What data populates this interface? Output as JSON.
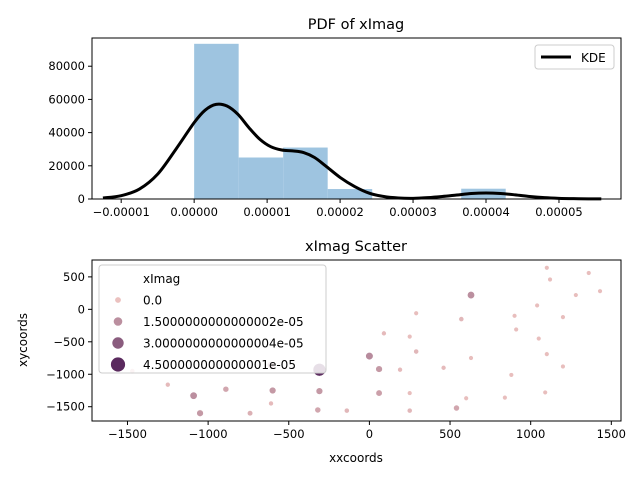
{
  "chart_data": [
    {
      "type": "bar",
      "title": "PDF of xImag",
      "xlabel": "",
      "ylabel": "",
      "xlim": [
        -1.4e-05,
        5.85e-05
      ],
      "ylim": [
        0,
        97000
      ],
      "xticks": [
        -1e-05,
        0,
        1e-05,
        2e-05,
        3e-05,
        4e-05,
        5e-05
      ],
      "xtick_labels": [
        "−0.00001",
        "0.00000",
        "0.00001",
        "0.00002",
        "0.00003",
        "0.00004",
        "0.00005"
      ],
      "yticks": [
        0,
        20000,
        40000,
        60000,
        80000
      ],
      "ytick_labels": [
        "0",
        "20000",
        "40000",
        "60000",
        "80000"
      ],
      "histogram": {
        "color": "#9ec4e0",
        "bins": [
          {
            "x0": 0,
            "x1": 6.1e-06,
            "value": 93500
          },
          {
            "x0": 6.1e-06,
            "x1": 1.22e-05,
            "value": 25000
          },
          {
            "x0": 1.22e-05,
            "x1": 1.83e-05,
            "value": 31000
          },
          {
            "x0": 1.83e-05,
            "x1": 2.44e-05,
            "value": 6000
          },
          {
            "x0": 2.44e-05,
            "x1": 3.05e-05,
            "value": 0
          },
          {
            "x0": 3.05e-05,
            "x1": 3.66e-05,
            "value": 0
          },
          {
            "x0": 3.66e-05,
            "x1": 4.27e-05,
            "value": 6200
          }
        ]
      },
      "series": [
        {
          "name": "KDE",
          "color": "#000000",
          "x": [
            -1.25e-05,
            -1e-05,
            -7.5e-06,
            -5e-06,
            -2.5e-06,
            0,
            1.5e-06,
            3e-06,
            4.5e-06,
            6e-06,
            7.5e-06,
            9e-06,
            1.05e-05,
            1.2e-05,
            1.35e-05,
            1.5e-05,
            1.65e-05,
            1.8e-05,
            2e-05,
            2.2e-05,
            2.4e-05,
            2.6e-05,
            2.8e-05,
            3e-05,
            3.2e-05,
            3.4e-05,
            3.6e-05,
            3.8e-05,
            4e-05,
            4.2e-05,
            4.4e-05,
            4.6e-05,
            4.8e-05,
            5e-05,
            5.2e-05,
            5.4e-05,
            5.58e-05
          ],
          "y": [
            600,
            2000,
            6000,
            15000,
            30000,
            46000,
            53500,
            57000,
            56000,
            51000,
            43000,
            36000,
            31500,
            29500,
            29000,
            28000,
            25000,
            20000,
            13000,
            7500,
            3500,
            1500,
            600,
            400,
            800,
            1500,
            2400,
            3300,
            3600,
            3300,
            2500,
            1500,
            800,
            400,
            200,
            100,
            50
          ]
        }
      ],
      "legend": {
        "entries": [
          "KDE"
        ],
        "placement": "top-right"
      },
      "grid": false
    },
    {
      "type": "scatter",
      "title": "xImag Scatter",
      "xlabel": "xxcoords",
      "ylabel": "xycoords",
      "xlim": [
        -1720,
        1560
      ],
      "ylim": [
        -1720,
        760
      ],
      "xticks": [
        -1500,
        -1000,
        -500,
        0,
        500,
        1000,
        1500
      ],
      "xtick_labels": [
        "−1500",
        "−1000",
        "−500",
        "0",
        "500",
        "1000",
        "1500"
      ],
      "yticks": [
        500,
        0,
        -500,
        -1000,
        -1500
      ],
      "ytick_labels": [
        "500",
        "0",
        "−500",
        "−1000",
        "−1500"
      ],
      "legend": {
        "title": "xImag",
        "placement": "upper-left",
        "entries": [
          {
            "label": "0.0",
            "value": 0
          },
          {
            "label": "1.5000000000000002e-05",
            "value": 1.5e-05
          },
          {
            "label": "3.0000000000000004e-05",
            "value": 3e-05
          },
          {
            "label": "4.500000000000001e-05",
            "value": 4.5e-05
          }
        ]
      },
      "size_range": [
        0,
        4.5e-05
      ],
      "color_range": [
        "#ebc1bf",
        "#5a2a5e"
      ],
      "points": [
        {
          "x": 1100,
          "y": 640,
          "v": 1e-06
        },
        {
          "x": 1120,
          "y": 460,
          "v": 1e-06
        },
        {
          "x": 1360,
          "y": 560,
          "v": 1e-06
        },
        {
          "x": 1430,
          "y": 280,
          "v": 1e-06
        },
        {
          "x": 1280,
          "y": 220,
          "v": 1e-06
        },
        {
          "x": 1040,
          "y": 60,
          "v": 1e-06
        },
        {
          "x": 900,
          "y": -100,
          "v": 1e-06
        },
        {
          "x": 1200,
          "y": -120,
          "v": 1e-06
        },
        {
          "x": 910,
          "y": -310,
          "v": 1e-06
        },
        {
          "x": 1050,
          "y": -450,
          "v": 1e-06
        },
        {
          "x": 1100,
          "y": -690,
          "v": 1e-06
        },
        {
          "x": 1200,
          "y": -880,
          "v": 1e-06
        },
        {
          "x": 880,
          "y": -1010,
          "v": 1e-06
        },
        {
          "x": 1090,
          "y": -1280,
          "v": 1e-06
        },
        {
          "x": 840,
          "y": -1360,
          "v": 1e-06
        },
        {
          "x": 630,
          "y": 220,
          "v": 1.5e-05
        },
        {
          "x": 290,
          "y": -60,
          "v": 1e-06
        },
        {
          "x": 570,
          "y": -150,
          "v": 3e-06
        },
        {
          "x": 90,
          "y": -370,
          "v": 2e-06
        },
        {
          "x": 250,
          "y": -420,
          "v": 1e-06
        },
        {
          "x": 290,
          "y": -650,
          "v": 3e-06
        },
        {
          "x": 630,
          "y": -750,
          "v": 1e-06
        },
        {
          "x": 0,
          "y": -720,
          "v": 1.6e-05
        },
        {
          "x": 60,
          "y": -920,
          "v": 1.2e-05
        },
        {
          "x": 190,
          "y": -930,
          "v": 2e-06
        },
        {
          "x": 460,
          "y": -900,
          "v": 2e-06
        },
        {
          "x": 60,
          "y": -1290,
          "v": 1e-05
        },
        {
          "x": 250,
          "y": -1290,
          "v": 1e-06
        },
        {
          "x": 600,
          "y": -1370,
          "v": 1e-06
        },
        {
          "x": 540,
          "y": -1520,
          "v": 8e-06
        },
        {
          "x": 250,
          "y": -1560,
          "v": 3e-06
        },
        {
          "x": -140,
          "y": -1560,
          "v": 3e-06
        },
        {
          "x": -310,
          "y": -930,
          "v": 4.4e-05
        },
        {
          "x": -310,
          "y": -1260,
          "v": 1.2e-05
        },
        {
          "x": -320,
          "y": -1550,
          "v": 8e-06
        },
        {
          "x": -610,
          "y": -860,
          "v": 1.5e-05
        },
        {
          "x": -600,
          "y": -1250,
          "v": 1.2e-05
        },
        {
          "x": -610,
          "y": -1450,
          "v": 2e-06
        },
        {
          "x": -740,
          "y": -1600,
          "v": 5e-06
        },
        {
          "x": -890,
          "y": -1230,
          "v": 8e-06
        },
        {
          "x": -1090,
          "y": -1330,
          "v": 1.5e-05
        },
        {
          "x": -1050,
          "y": -1600,
          "v": 1.2e-05
        },
        {
          "x": -1250,
          "y": -1160,
          "v": 2e-06
        },
        {
          "x": -1470,
          "y": -950,
          "v": 3e-06
        }
      ],
      "grid": false
    }
  ]
}
